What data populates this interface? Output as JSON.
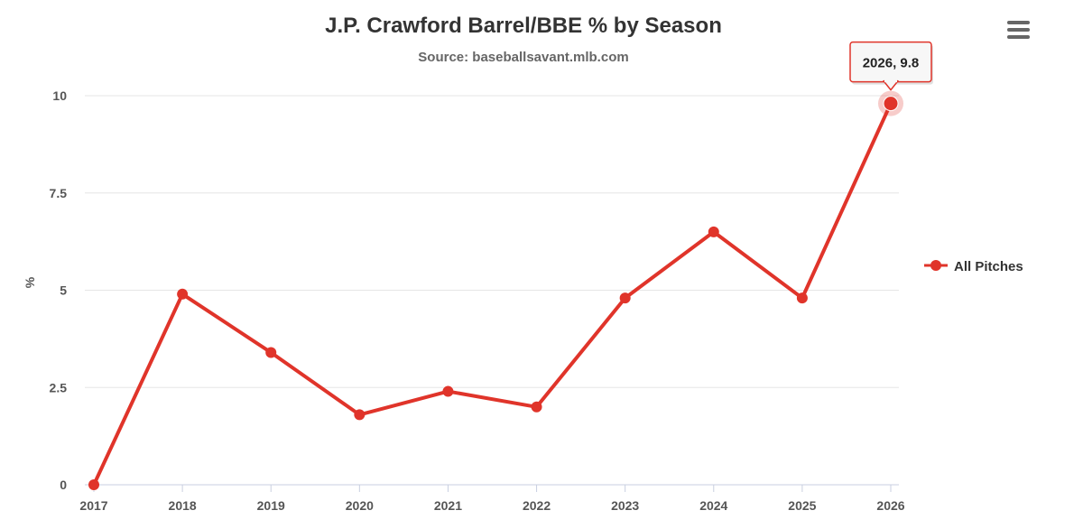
{
  "chart_data": {
    "type": "line",
    "title": "J.P. Crawford Barrel/BBE %  by Season",
    "subtitle": "Source: baseballsavant.mlb.com",
    "xlabel": "",
    "ylabel": "%",
    "x": [
      "2017",
      "2018",
      "2019",
      "2020",
      "2021",
      "2022",
      "2023",
      "2024",
      "2025",
      "2026"
    ],
    "series": [
      {
        "name": "All Pitches",
        "color": "#e0342a",
        "values": [
          0,
          4.9,
          3.4,
          1.8,
          2.4,
          2.0,
          4.8,
          6.5,
          4.8,
          9.8
        ]
      }
    ],
    "ylim": [
      0,
      10
    ],
    "yticks": [
      "0",
      "2.5",
      "5",
      "7.5",
      "10"
    ],
    "grid": true,
    "legend_position": "right",
    "tooltip": {
      "label": "2026, 9.8",
      "point_index": 9
    }
  },
  "menu": {
    "icon": "hamburger-menu-icon"
  }
}
